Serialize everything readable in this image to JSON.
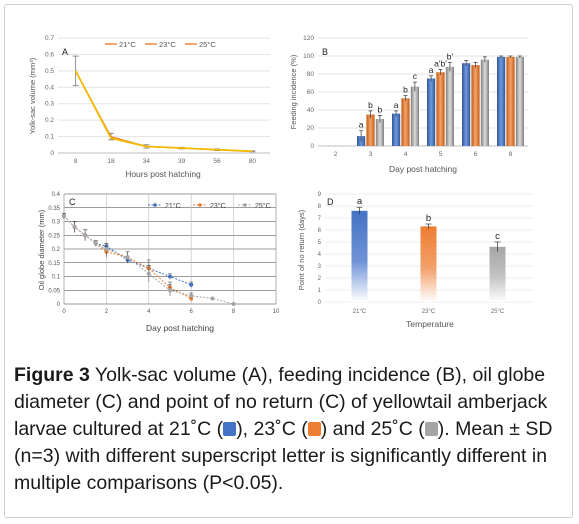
{
  "colors": {
    "t21": "#4472c4",
    "t23": "#ed7d31",
    "t25": "#a5a5a5",
    "panelA_line": "#f5b800"
  },
  "chart_data": [
    {
      "id": "A",
      "type": "line",
      "panel_label": "A",
      "xlabel": "Hours post hatching",
      "ylabel": "Yolk-sac volume (mm³)",
      "categories": [
        "8",
        "18",
        "34",
        "39",
        "56",
        "80"
      ],
      "ylim": [
        0,
        0.7
      ],
      "yticks": [
        "0",
        "0.1",
        "0.2",
        "0.3",
        "0.4",
        "0.5",
        "0.6",
        "0.7"
      ],
      "grid": true,
      "legend": "top",
      "series": [
        {
          "name": "21°C",
          "values": [
            0.5,
            0.1,
            0.04,
            0.03,
            0.02,
            0.01
          ]
        },
        {
          "name": "23°C",
          "values": [
            0.5,
            0.09,
            0.04,
            0.03,
            0.02,
            0.01
          ]
        },
        {
          "name": "25°C",
          "values": [
            0.5,
            0.09,
            0.04,
            0.03,
            0.02,
            0.01
          ]
        }
      ],
      "error": [
        0.09,
        0.02,
        0.01,
        0.005,
        0.005,
        0.003
      ]
    },
    {
      "id": "B",
      "type": "bar",
      "panel_label": "B",
      "xlabel": "Day post hatching",
      "ylabel": "Feeding incidence (%)",
      "categories": [
        "2",
        "3",
        "4",
        "5",
        "6",
        "8"
      ],
      "ylim": [
        0,
        120
      ],
      "yticks": [
        "0",
        "20",
        "40",
        "60",
        "80",
        "100",
        "120"
      ],
      "grid": true,
      "series": [
        {
          "name": "21°C",
          "values": [
            0,
            11,
            36,
            75,
            92,
            99
          ],
          "err": [
            0,
            6,
            3,
            3,
            3,
            1
          ]
        },
        {
          "name": "23°C",
          "values": [
            0,
            35,
            53,
            82,
            90,
            99
          ],
          "err": [
            0,
            4,
            3,
            3,
            3,
            1
          ]
        },
        {
          "name": "25°C",
          "values": [
            0,
            30,
            66,
            88,
            96,
            99
          ],
          "err": [
            0,
            4,
            5,
            5,
            3,
            1
          ]
        }
      ],
      "annotations": [
        {
          "cat": "3",
          "text": "a",
          "series": 0
        },
        {
          "cat": "3",
          "text": "b",
          "series": 1
        },
        {
          "cat": "3",
          "text": "b",
          "series": 2
        },
        {
          "cat": "4",
          "text": "a",
          "series": 0
        },
        {
          "cat": "4",
          "text": "b",
          "series": 1
        },
        {
          "cat": "4",
          "text": "c",
          "series": 2
        },
        {
          "cat": "5",
          "text": "a",
          "series": 0
        },
        {
          "cat": "5",
          "text": "a'b'",
          "series": 1
        },
        {
          "cat": "5",
          "text": "b'",
          "series": 2
        }
      ]
    },
    {
      "id": "C",
      "type": "line",
      "panel_label": "C",
      "xlabel": "Day post hatching",
      "ylabel": "Oil globe diameter (mm)",
      "xlim": [
        0,
        10
      ],
      "xticks": [
        "0",
        "2",
        "4",
        "6",
        "8",
        "10"
      ],
      "ylim": [
        0,
        0.4
      ],
      "yticks": [
        "0",
        "0.05",
        "0.1",
        "0.15",
        "0.2",
        "0.25",
        "0.3",
        "0.35",
        "0.4"
      ],
      "grid": true,
      "legend": "top-right",
      "series": [
        {
          "name": "21°C",
          "x": [
            0,
            0.5,
            1,
            1.5,
            2,
            3,
            4,
            5,
            6
          ],
          "y": [
            0.32,
            0.28,
            0.25,
            0.22,
            0.21,
            0.16,
            0.13,
            0.1,
            0.07
          ],
          "err": [
            0.01,
            0.02,
            0.02,
            0.01,
            0.01,
            0.01,
            0.01,
            0.01,
            0.01
          ]
        },
        {
          "name": "23°C",
          "x": [
            0,
            0.5,
            1,
            1.5,
            2,
            3,
            4,
            5,
            6
          ],
          "y": [
            0.32,
            0.28,
            0.25,
            0.22,
            0.19,
            0.17,
            0.13,
            0.06,
            0.02
          ],
          "err": [
            0.01,
            0.02,
            0.02,
            0.01,
            0.02,
            0.02,
            0.03,
            0.02,
            0.01
          ]
        },
        {
          "name": "25°C",
          "x": [
            0,
            0.5,
            1,
            1.5,
            2,
            3,
            4,
            5,
            6,
            7,
            8
          ],
          "y": [
            0.32,
            0.28,
            0.25,
            0.22,
            0.2,
            0.17,
            0.11,
            0.05,
            0.03,
            0.02,
            0.0
          ],
          "err": [
            0.01,
            0.02,
            0.02,
            0.01,
            0.02,
            0.02,
            0.03,
            0.02,
            0.01,
            0.0,
            0.0
          ]
        }
      ]
    },
    {
      "id": "D",
      "type": "bar",
      "panel_label": "D",
      "xlabel": "Temperature",
      "ylabel": "Point of no return (days)",
      "categories": [
        "21°C",
        "23°C",
        "25°C"
      ],
      "values": [
        7.6,
        6.3,
        4.6
      ],
      "err": [
        0.3,
        0.2,
        0.4
      ],
      "letters": [
        "a",
        "b",
        "c"
      ],
      "ylim": [
        0,
        9
      ],
      "yticks": [
        "0",
        "1",
        "2",
        "3",
        "4",
        "5",
        "6",
        "7",
        "8",
        "9"
      ],
      "grid": true
    }
  ],
  "caption": {
    "label": "Figure 3",
    "text1": " Yolk-sac volume (A), feeding incidence (B), oil globe diameter (C) and point of no return (C) of yellowtail amberjack larvae cultured at 21˚C (",
    "text2": "), 23˚C (",
    "text3": ") and 25˚C (",
    "text4": "). Mean ± SD (n=3) with different superscript letter is significantly different in multiple comparisons (P<0.05)."
  }
}
